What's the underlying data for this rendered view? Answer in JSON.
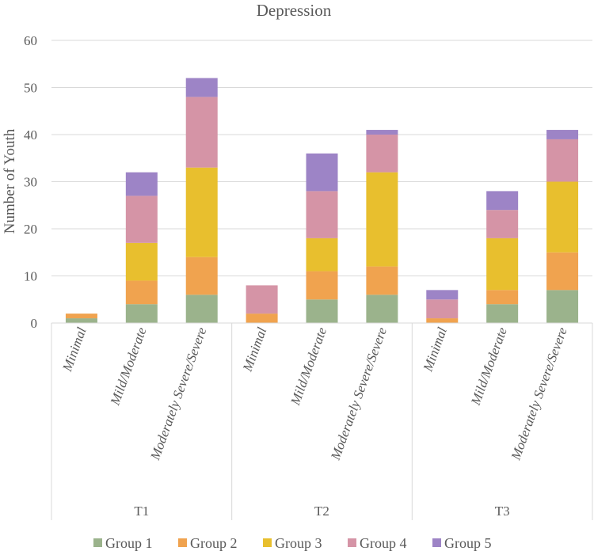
{
  "chart_data": {
    "type": "bar",
    "stacked": true,
    "title": "Depression",
    "xlabel": "",
    "ylabel": "Number of Youth",
    "ylim": [
      0,
      60
    ],
    "yticks": [
      0,
      10,
      20,
      30,
      40,
      50,
      60
    ],
    "groups": [
      {
        "label": "T1",
        "categories": [
          "Minimal",
          "Mild/Moderate",
          "Moderately Severe/Severe"
        ]
      },
      {
        "label": "T2",
        "categories": [
          "Minimal",
          "Mild/Moderate",
          "Moderately Severe/Severe"
        ]
      },
      {
        "label": "T3",
        "categories": [
          "Minimal",
          "Mild/Moderate",
          "Moderately Severe/Severe"
        ]
      }
    ],
    "series": [
      {
        "name": "Group 1",
        "color": "#9bb38c",
        "values": [
          1,
          4,
          6,
          0,
          5,
          6,
          0,
          4,
          7
        ]
      },
      {
        "name": "Group 2",
        "color": "#f0a34f",
        "values": [
          1,
          5,
          8,
          2,
          6,
          6,
          1,
          3,
          8
        ]
      },
      {
        "name": "Group 3",
        "color": "#e8bf2e",
        "values": [
          0,
          8,
          19,
          0,
          7,
          20,
          0,
          11,
          15
        ]
      },
      {
        "name": "Group 4",
        "color": "#d594a6",
        "values": [
          0,
          10,
          15,
          6,
          10,
          8,
          4,
          6,
          9
        ]
      },
      {
        "name": "Group 5",
        "color": "#9d84c6",
        "values": [
          0,
          5,
          4,
          0,
          8,
          1,
          2,
          4,
          2
        ]
      }
    ],
    "legend_position": "bottom"
  }
}
